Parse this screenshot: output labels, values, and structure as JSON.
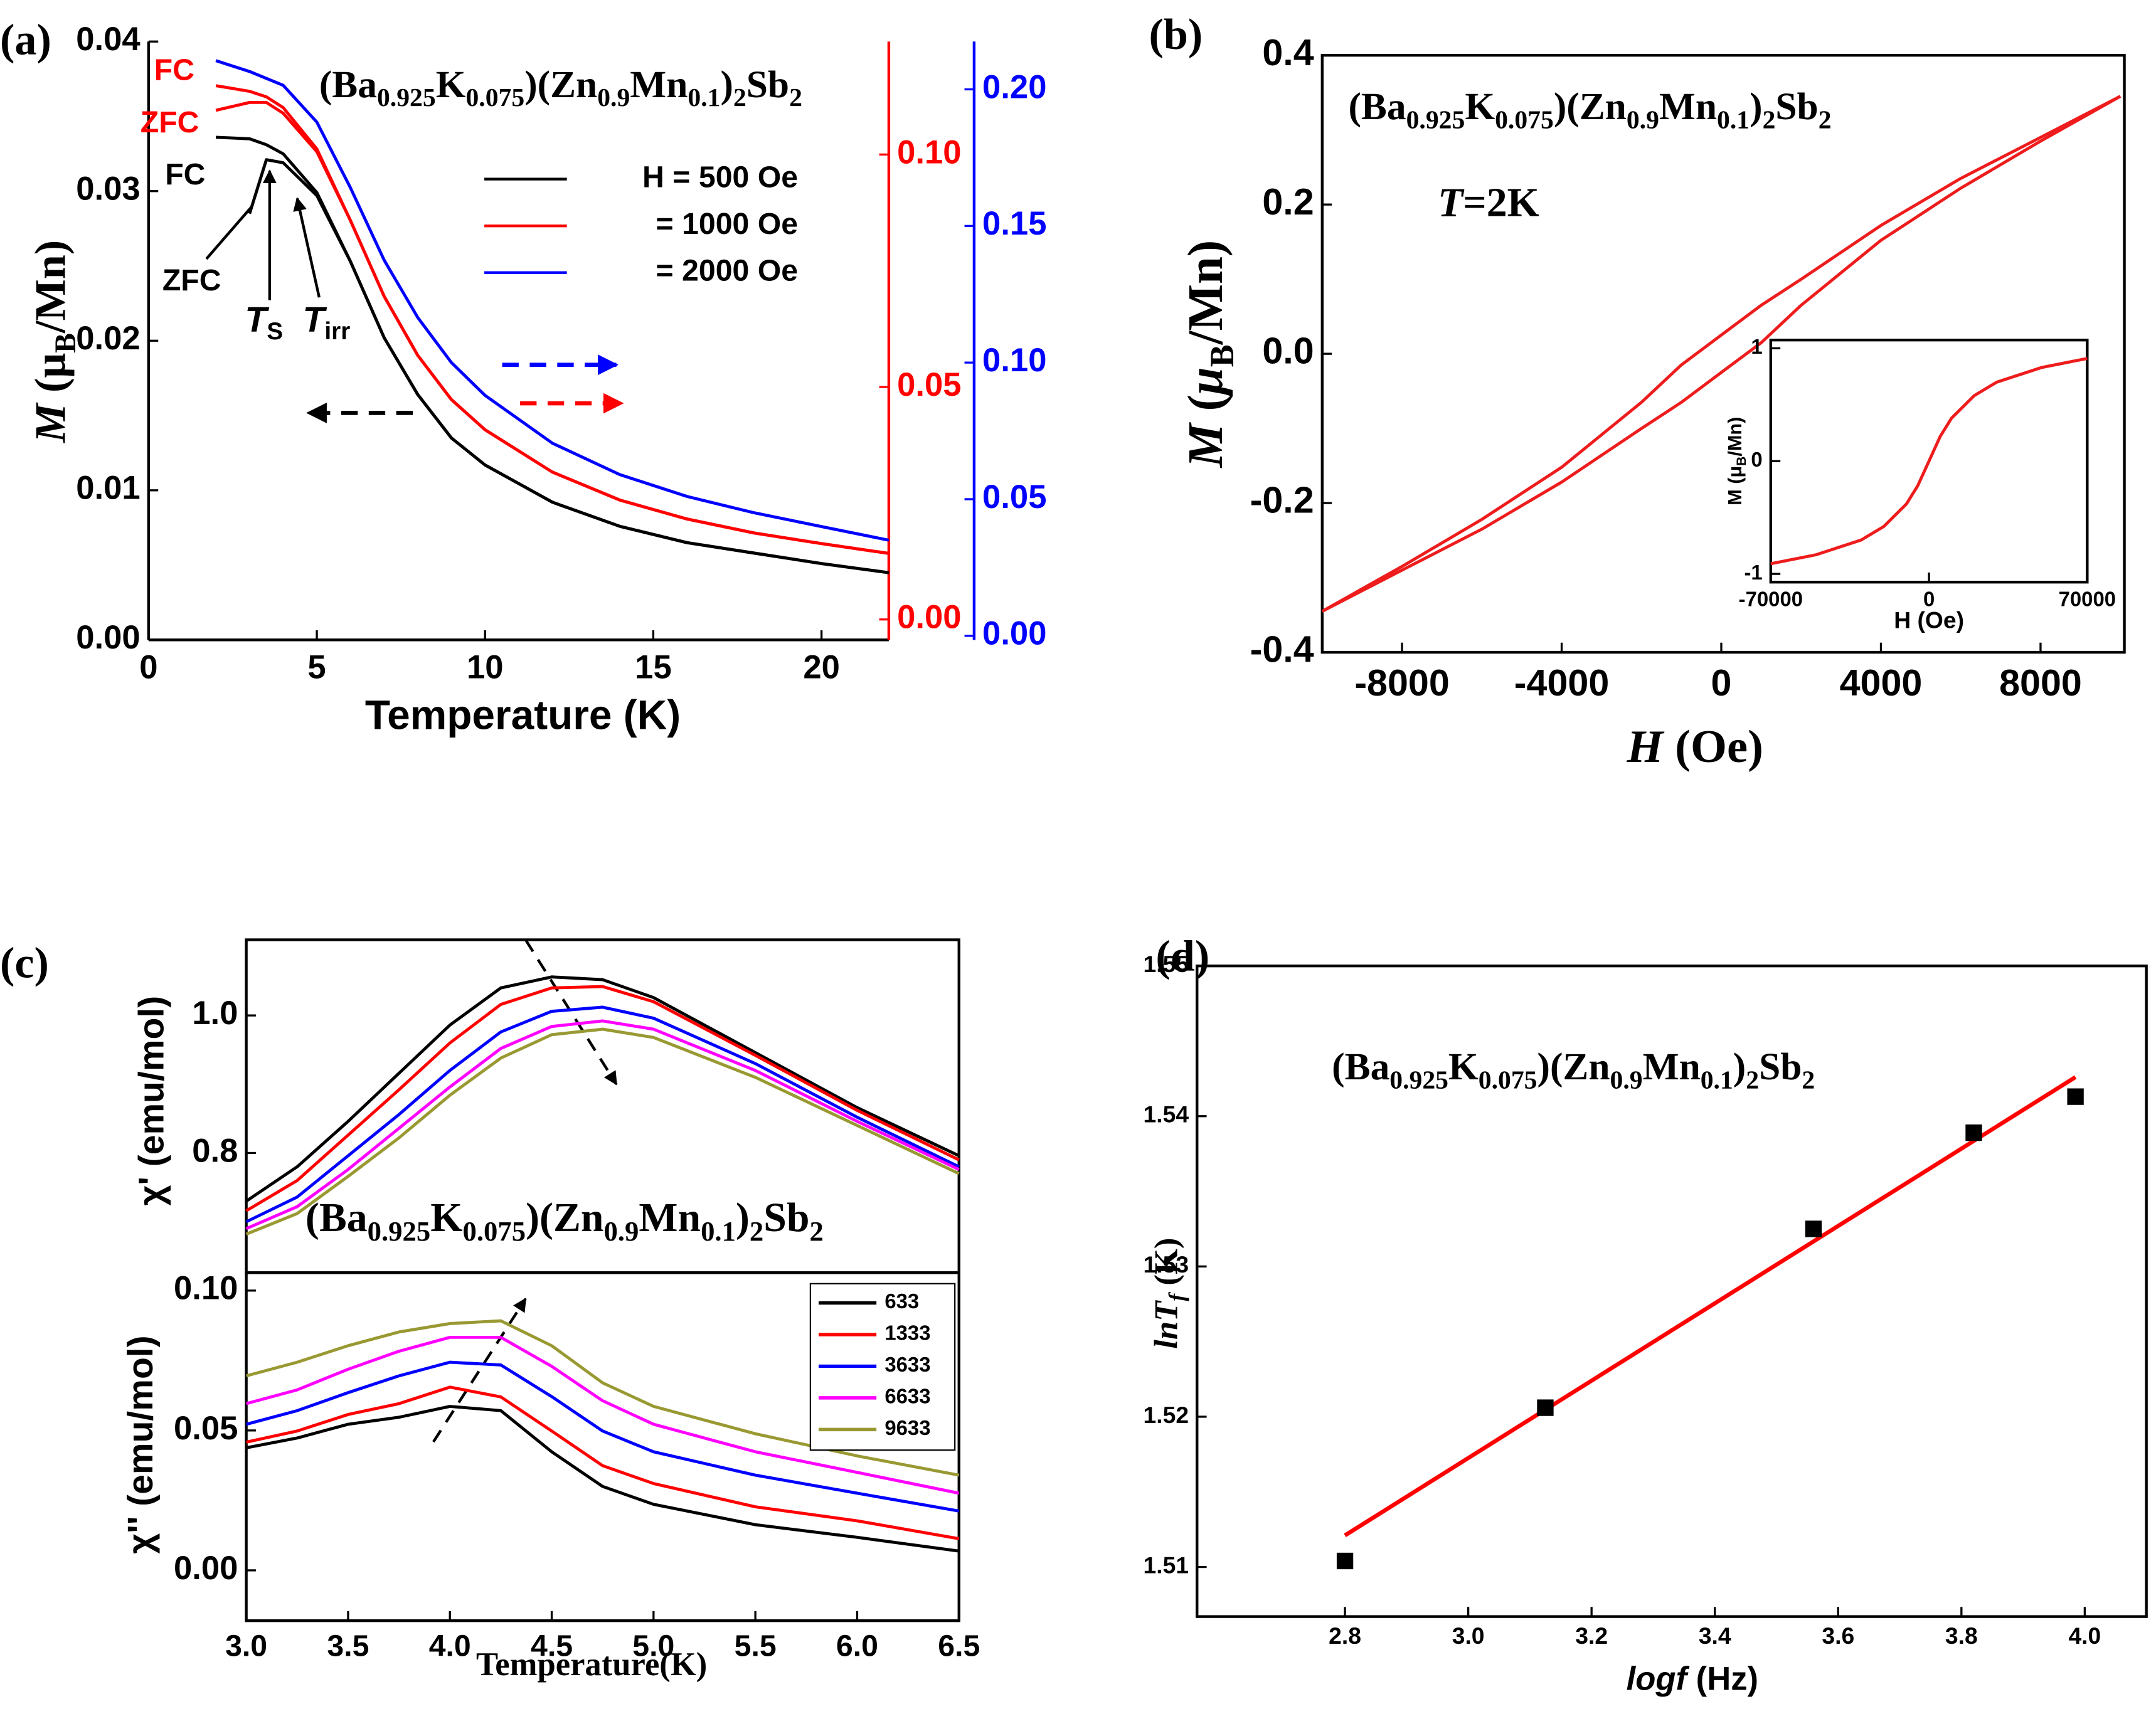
{
  "chart_data": [
    {
      "type": "line",
      "panel": "(a)",
      "title": [
        [
          "(Ba",
          ""
        ],
        [
          "0.925",
          "sub"
        ],
        [
          "K",
          ""
        ],
        [
          "0.075",
          "sub"
        ],
        [
          ")(Zn",
          ""
        ],
        [
          "0.9",
          "sub"
        ],
        [
          "Mn",
          ""
        ],
        [
          "0.1",
          "sub"
        ],
        [
          ")",
          ""
        ],
        [
          "2",
          "sub"
        ],
        [
          "Sb",
          ""
        ],
        [
          "2",
          "sub"
        ]
      ],
      "xlabel": "Temperature (K)",
      "ylabel": [
        [
          "M",
          "i"
        ],
        [
          " (μ",
          ""
        ],
        [
          "B",
          "sub"
        ],
        [
          "/Mn)",
          ""
        ]
      ],
      "xlim": [
        0,
        22
      ],
      "xticks": [
        0,
        5,
        10,
        15,
        20
      ],
      "ylim": [
        0,
        0.04
      ],
      "yticks": [
        {
          "value": 0,
          "label": "0.00"
        },
        0.01,
        0.02,
        0.03,
        0.04
      ],
      "y2lim": [
        -0.0044,
        0.1243
      ],
      "y2ticks": [
        {
          "value": 0,
          "label": "0.00"
        },
        0.05,
        {
          "value": 0.1,
          "label": "0.10"
        }
      ],
      "y2color": "#ff0000",
      "y3lim": [
        -0.0015,
        0.2175
      ],
      "y3ticks": [
        {
          "value": 0,
          "label": "0.00"
        },
        0.05,
        {
          "value": 0.1,
          "label": "0.10"
        },
        0.15,
        {
          "value": 0.2,
          "label": "0.20"
        }
      ],
      "y3color": "#0000ff",
      "legend": "upper right",
      "x": [
        2,
        3,
        3.5,
        4,
        5,
        6,
        7,
        8,
        9,
        10,
        12,
        14,
        16,
        18,
        20,
        22
      ],
      "series": [
        {
          "name": "H = 500 Oe",
          "color": "#000000",
          "values": [
            0.0336,
            0.0335,
            0.0331,
            0.0325,
            0.0299,
            0.0253,
            0.0202,
            0.0164,
            0.0135,
            0.0117,
            0.0092,
            0.0076,
            0.0065,
            0.0058,
            0.0051,
            0.0045
          ],
          "values_zfc": [
            null,
            0.0285,
            0.0321,
            0.0319,
            0.0297,
            0.0253,
            0.0202,
            0.0164,
            0.0135,
            0.0117,
            0.0092,
            0.0076,
            0.0065,
            0.0058,
            0.0051,
            0.0045
          ]
        },
        {
          "name": "= 1000 Oe",
          "color": "#ff0000",
          "axis": "y2",
          "values": [
            0.1148,
            0.1136,
            0.1124,
            0.1101,
            0.1012,
            0.0858,
            0.0695,
            0.0568,
            0.0473,
            0.0408,
            0.0317,
            0.0257,
            0.0216,
            0.0186,
            0.0163,
            0.0142
          ],
          "values_zfc": [
            0.1095,
            0.1112,
            0.1112,
            0.1089,
            0.1006,
            0.0858,
            0.0695,
            0.0568,
            0.0473,
            0.0408,
            0.0317,
            0.0257,
            0.0216,
            0.0186,
            0.0163,
            0.0142
          ]
        },
        {
          "name": "= 2000 Oe",
          "color": "#0000ff",
          "axis": "y3",
          "values": [
            0.2105,
            0.2065,
            0.204,
            0.2015,
            0.188,
            0.164,
            0.1375,
            0.1165,
            0.1,
            0.088,
            0.0705,
            0.059,
            0.051,
            0.045,
            0.04,
            0.035
          ]
        }
      ],
      "annotations": [
        {
          "text": [
            [
              "FC",
              ""
            ]
          ],
          "color": "#ff0000"
        },
        {
          "text": [
            [
              "ZFC",
              ""
            ]
          ],
          "color": "#ff0000"
        },
        {
          "text": [
            [
              "FC",
              ""
            ]
          ],
          "color": "#000000"
        },
        {
          "text": [
            [
              "ZFC",
              ""
            ]
          ],
          "color": "#000000"
        },
        {
          "text": [
            [
              "T",
              "i"
            ],
            [
              "S",
              "sub"
            ]
          ],
          "color": "#000000"
        },
        {
          "text": [
            [
              "T",
              "i"
            ],
            [
              "irr",
              "sub"
            ]
          ],
          "color": "#000000"
        }
      ]
    },
    {
      "type": "line",
      "panel": "(b)",
      "title": [
        [
          "(Ba",
          ""
        ],
        [
          "0.925",
          "sub"
        ],
        [
          "K",
          ""
        ],
        [
          "0.075",
          "sub"
        ],
        [
          ")(Zn",
          ""
        ],
        [
          "0.9",
          "sub"
        ],
        [
          "Mn",
          ""
        ],
        [
          "0.1",
          "sub"
        ],
        [
          ")",
          ""
        ],
        [
          "2",
          "sub"
        ],
        [
          "Sb",
          ""
        ],
        [
          "2",
          "sub"
        ]
      ],
      "xlabel": [
        [
          "H",
          "i"
        ],
        [
          " (Oe)",
          ""
        ]
      ],
      "ylabel": [
        [
          "M",
          "i"
        ],
        [
          " (",
          ""
        ],
        [
          "μ",
          "i"
        ],
        [
          "B",
          "sub"
        ],
        [
          "/Mn)",
          ""
        ]
      ],
      "xlim": [
        -10000,
        10100
      ],
      "xticks": [
        -8000,
        -4000,
        0,
        4000,
        8000
      ],
      "ylim": [
        -0.4,
        0.4
      ],
      "yticks": [
        -0.4,
        -0.2,
        {
          "value": 0,
          "label": "0.0"
        },
        0.2,
        0.4
      ],
      "x": [
        -10000,
        -8000,
        -6000,
        -4000,
        -2000,
        -1000,
        0,
        1000,
        2000,
        4000,
        6000,
        8000,
        10000
      ],
      "series": [
        {
          "color": "#ee1c1c",
          "values": [
            -0.345,
            -0.285,
            -0.222,
            -0.152,
            -0.065,
            -0.015,
            0.025,
            0.065,
            0.1,
            0.172,
            0.235,
            0.29,
            0.345
          ]
        },
        {
          "color": "#ee1c1c",
          "values": [
            -0.345,
            -0.29,
            -0.235,
            -0.172,
            -0.1,
            -0.065,
            -0.025,
            0.015,
            0.065,
            0.152,
            0.222,
            0.285,
            0.345
          ]
        }
      ],
      "annotations": [
        {
          "text": [
            [
              "T",
              "i"
            ],
            [
              "=2K",
              ""
            ]
          ],
          "color": "#000000"
        }
      ]
    },
    {
      "type": "line",
      "xlabel": "H (Oe)",
      "ylabel": [
        [
          "M (μ",
          ""
        ],
        [
          "B",
          "sub"
        ],
        [
          "/Mn)",
          ""
        ]
      ],
      "xlim": [
        -70000,
        70000
      ],
      "xticks": [
        -70000,
        0,
        70000
      ],
      "ylim": [
        -1.073,
        1.073
      ],
      "yticks": [
        -1,
        0,
        1
      ],
      "x": [
        -70000,
        -50000,
        -30000,
        -20000,
        -10000,
        -5000,
        0,
        5000,
        10000,
        20000,
        30000,
        50000,
        70000
      ],
      "series": [
        {
          "color": "#ee1c1c",
          "values": [
            -0.91,
            -0.83,
            -0.7,
            -0.58,
            -0.38,
            -0.22,
            0,
            0.22,
            0.38,
            0.58,
            0.7,
            0.83,
            0.91
          ]
        }
      ]
    },
    {
      "type": "line",
      "panel": "(c)",
      "title": [
        [
          "(Ba",
          ""
        ],
        [
          "0.925",
          "sub"
        ],
        [
          "K",
          ""
        ],
        [
          "0.075",
          "sub"
        ],
        [
          ")(Zn",
          ""
        ],
        [
          "0.9",
          "sub"
        ],
        [
          "Mn",
          ""
        ],
        [
          "0.1",
          "sub"
        ],
        [
          ")",
          ""
        ],
        [
          "2",
          "sub"
        ],
        [
          "Sb",
          ""
        ],
        [
          "2",
          "sub"
        ]
      ],
      "ylabel": "χ' (emu/mol)",
      "xlim": [
        3,
        6.5
      ],
      "ylim": [
        0.626,
        1.11
      ],
      "yticks": [
        0.8,
        {
          "value": 1,
          "label": "1.0"
        }
      ],
      "x": [
        3,
        3.25,
        3.5,
        3.75,
        4,
        4.25,
        4.5,
        4.75,
        5,
        5.5,
        6,
        6.5
      ],
      "series": [
        {
          "color": "#000000",
          "values": [
            0.73,
            0.78,
            0.846,
            0.916,
            0.986,
            1.04,
            1.056,
            1.052,
            1.026,
            0.946,
            0.866,
            0.796
          ]
        },
        {
          "color": "#ff0000",
          "values": [
            0.716,
            0.76,
            0.826,
            0.892,
            0.96,
            1.016,
            1.04,
            1.042,
            1.02,
            0.942,
            0.862,
            0.79
          ]
        },
        {
          "color": "#0000ff",
          "values": [
            0.7,
            0.736,
            0.796,
            0.856,
            0.92,
            0.976,
            1.006,
            1.012,
            0.996,
            0.93,
            0.852,
            0.78
          ]
        },
        {
          "color": "#ff00ff",
          "values": [
            0.69,
            0.722,
            0.776,
            0.836,
            0.896,
            0.952,
            0.984,
            0.992,
            0.98,
            0.92,
            0.846,
            0.776
          ]
        },
        {
          "color": "#999933",
          "values": [
            0.682,
            0.712,
            0.766,
            0.822,
            0.884,
            0.938,
            0.972,
            0.98,
            0.968,
            0.91,
            0.84,
            0.77
          ]
        }
      ]
    },
    {
      "type": "line",
      "xlabel": "Temperature(K)",
      "ylabel": "χ'' (emu/mol)",
      "xlim": [
        3,
        6.5
      ],
      "xticks": [
        {
          "value": 3,
          "label": "3.0"
        },
        3.5,
        {
          "value": 4,
          "label": "4.0"
        },
        4.5,
        {
          "value": 5,
          "label": "5.0"
        },
        5.5,
        {
          "value": 6,
          "label": "6.0"
        },
        6.5
      ],
      "ylim": [
        -0.018,
        0.1064
      ],
      "yticks": [
        {
          "value": 0,
          "label": "0.00"
        },
        0.05,
        {
          "value": 0.1,
          "label": "0.10"
        }
      ],
      "legend": "upper right",
      "x": [
        3,
        3.25,
        3.5,
        3.75,
        4,
        4.25,
        4.5,
        4.75,
        5,
        5.5,
        6,
        6.5
      ],
      "series": [
        {
          "name": "633",
          "color": "#000000",
          "values": [
            0.0438,
            0.0473,
            0.0522,
            0.0547,
            0.0586,
            0.0571,
            0.0424,
            0.03,
            0.0236,
            0.0163,
            0.0118,
            0.0069
          ]
        },
        {
          "name": "1333",
          "color": "#ff0000",
          "values": [
            0.0458,
            0.0498,
            0.0557,
            0.0596,
            0.0655,
            0.062,
            0.0498,
            0.0374,
            0.031,
            0.0227,
            0.0177,
            0.0113
          ]
        },
        {
          "name": "3633",
          "color": "#0000ff",
          "values": [
            0.0522,
            0.0571,
            0.0635,
            0.0695,
            0.0744,
            0.0734,
            0.0621,
            0.0498,
            0.0424,
            0.034,
            0.0276,
            0.0212
          ]
        },
        {
          "name": "6633",
          "color": "#ff00ff",
          "values": [
            0.0596,
            0.0645,
            0.0719,
            0.0783,
            0.0833,
            0.0833,
            0.0729,
            0.0606,
            0.0522,
            0.0424,
            0.035,
            0.0276
          ]
        },
        {
          "name": "9633",
          "color": "#999933",
          "values": [
            0.0695,
            0.0744,
            0.0803,
            0.0852,
            0.0882,
            0.0892,
            0.0803,
            0.067,
            0.0586,
            0.0488,
            0.0409,
            0.034
          ]
        }
      ]
    },
    {
      "type": "scatter",
      "panel": "(d)",
      "title": [
        [
          "(Ba",
          ""
        ],
        [
          "0.925",
          "sub"
        ],
        [
          "K",
          ""
        ],
        [
          "0.075",
          "sub"
        ],
        [
          ")(Zn",
          ""
        ],
        [
          "0.9",
          "sub"
        ],
        [
          "Mn",
          ""
        ],
        [
          "0.1",
          "sub"
        ],
        [
          ")",
          ""
        ],
        [
          "2",
          "sub"
        ],
        [
          "Sb",
          ""
        ],
        [
          "2",
          "sub"
        ]
      ],
      "xlabel": [
        [
          "logf",
          "i"
        ],
        [
          " (Hz)",
          ""
        ]
      ],
      "ylabel": [
        [
          "lnT",
          "i"
        ],
        [
          "f",
          "isub"
        ],
        [
          " (K)",
          ""
        ]
      ],
      "xlim": [
        2.56,
        4.1
      ],
      "xticks": [
        2.8,
        {
          "value": 3,
          "label": "3.0"
        },
        3.2,
        3.4,
        3.6,
        3.8,
        {
          "value": 4,
          "label": "4.0"
        }
      ],
      "ylim": [
        1.5067,
        1.55
      ],
      "yticks": [
        1.51,
        1.52,
        1.53,
        1.54,
        1.55
      ],
      "x": [
        2.8,
        3.125,
        3.56,
        3.82,
        3.985
      ],
      "values": [
        1.5104,
        1.5206,
        1.5325,
        1.5389,
        1.5413
      ],
      "color": "#000000",
      "fit": {
        "x": [
          2.8,
          3.985
        ],
        "values": [
          1.5121,
          1.5426
        ],
        "color": "#ff0000"
      }
    }
  ]
}
